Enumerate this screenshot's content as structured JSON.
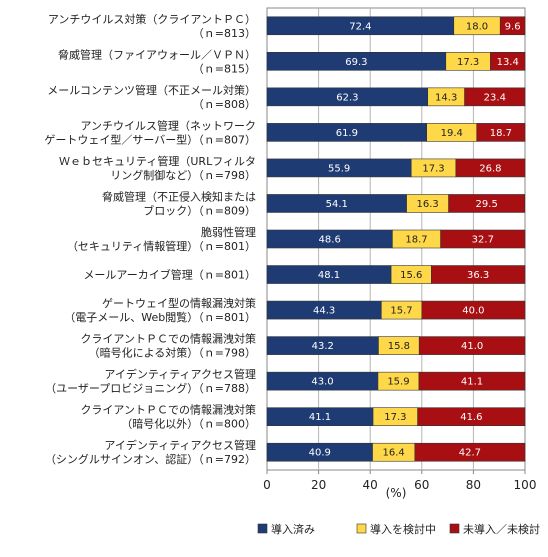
{
  "chart_data": {
    "type": "bar",
    "orientation": "horizontal",
    "stacked": true,
    "categories": [
      [
        "アンチウイルス対策（クライアントＰＣ）",
        "（ｎ=813）"
      ],
      [
        "脅威管理（ファイアウォール／ＶＰＮ）",
        "（ｎ=815）"
      ],
      [
        "メールコンテンツ管理（不正メール対策）",
        "（ｎ=808）"
      ],
      [
        "アンチウイルス管理（ネットワーク",
        "ゲートウェイ型／サーバー型）（ｎ=807）"
      ],
      [
        "Ｗｅｂセキュリティ管理（URLフィルタ",
        "リング制御など）（ｎ=798）"
      ],
      [
        "脅威管理（不正侵入検知または",
        "ブロック）（ｎ=809）"
      ],
      [
        "脆弱性管理",
        "（セキュリティ情報管理）（ｎ=801）"
      ],
      [
        "メールアーカイブ管理（ｎ=801）"
      ],
      [
        "ゲートウェイ型の情報漏洩対策",
        "（電子メール、Web閲覧）（ｎ=801）"
      ],
      [
        "クライアントＰＣでの情報漏洩対策",
        "（暗号化による対策）（ｎ=798）"
      ],
      [
        "アイデンティティアクセス管理",
        "（ユーザープロビジョニング）（ｎ=788）"
      ],
      [
        "クライアントＰＣでの情報漏洩対策",
        "（暗号化以外）（ｎ=800）"
      ],
      [
        "アイデンティティアクセス管理",
        "（シングルサインオン、認証）（ｎ=792）"
      ]
    ],
    "series": [
      {
        "name": "導入済み",
        "color": "#1f3b73",
        "label_color": "#ffffff",
        "values": [
          72.4,
          69.3,
          62.3,
          61.9,
          55.9,
          54.1,
          48.6,
          48.1,
          44.3,
          43.2,
          43.0,
          41.1,
          40.9
        ]
      },
      {
        "name": "導入を検討中",
        "color": "#ffd84a",
        "label_color": "#222222",
        "values": [
          18.0,
          17.3,
          14.3,
          19.4,
          17.3,
          16.3,
          18.7,
          15.6,
          15.7,
          15.8,
          15.9,
          17.3,
          16.4
        ]
      },
      {
        "name": "未導入／未検討",
        "color": "#a80f12",
        "label_color": "#ffffff",
        "values": [
          9.6,
          13.4,
          23.4,
          18.7,
          26.8,
          29.5,
          32.7,
          36.3,
          40.0,
          41.0,
          41.1,
          41.6,
          42.7
        ]
      }
    ],
    "xlim": [
      0,
      100
    ],
    "xticks": [
      "0",
      "20",
      "40",
      "60",
      "80",
      "100"
    ],
    "xlabel": "(%)",
    "grid": true,
    "legend_position": "bottom-right"
  }
}
